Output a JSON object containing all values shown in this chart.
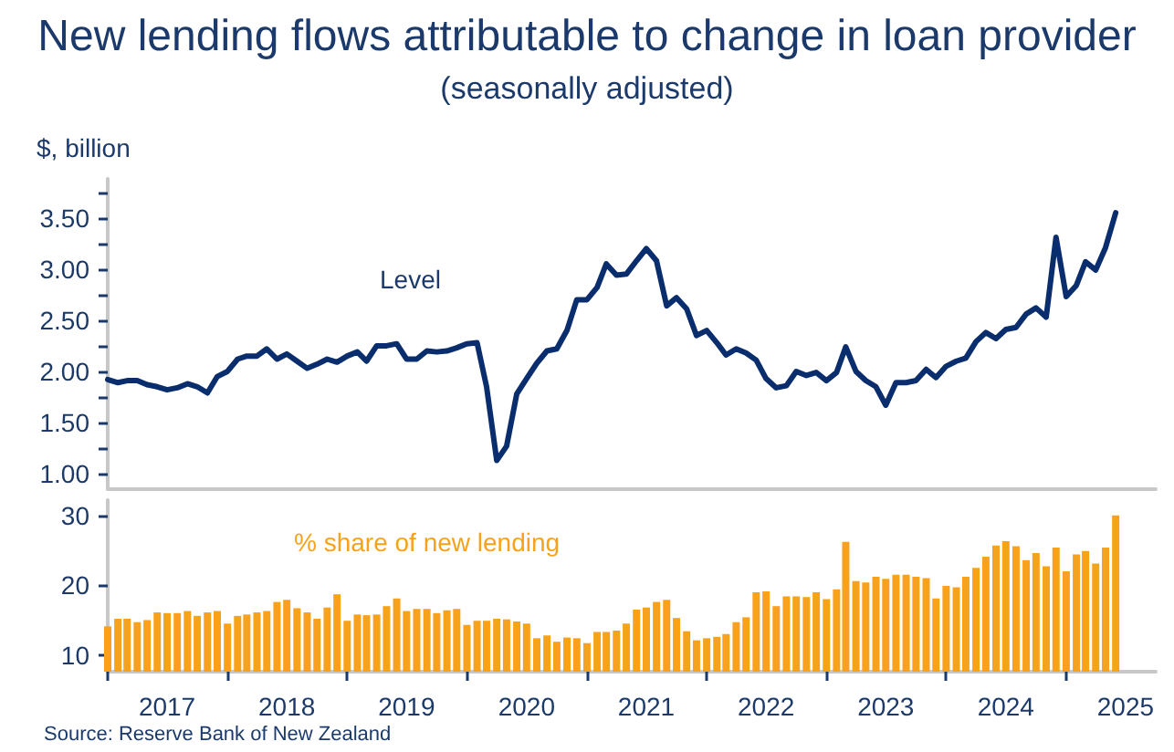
{
  "chart_data": [
    {
      "type": "line",
      "title": "New lending flows attributable to change in loan provider",
      "subtitle": "(seasonally adjusted)",
      "ylabel": "$, billion",
      "x": [
        "2017-01",
        "2017-02",
        "2017-03",
        "2017-04",
        "2017-05",
        "2017-06",
        "2017-07",
        "2017-08",
        "2017-09",
        "2017-10",
        "2017-11",
        "2017-12",
        "2018-01",
        "2018-02",
        "2018-03",
        "2018-04",
        "2018-05",
        "2018-06",
        "2018-07",
        "2018-08",
        "2018-09",
        "2018-10",
        "2018-11",
        "2018-12",
        "2019-01",
        "2019-02",
        "2019-03",
        "2019-04",
        "2019-05",
        "2019-06",
        "2019-07",
        "2019-08",
        "2019-09",
        "2019-10",
        "2019-11",
        "2019-12",
        "2020-01",
        "2020-02",
        "2020-03",
        "2020-04",
        "2020-05",
        "2020-06",
        "2020-07",
        "2020-08",
        "2020-09",
        "2020-10",
        "2020-11",
        "2020-12",
        "2021-01",
        "2021-02",
        "2021-03",
        "2021-04",
        "2021-05",
        "2021-06",
        "2021-07",
        "2021-08",
        "2021-09",
        "2021-10",
        "2021-11",
        "2021-12",
        "2022-01",
        "2022-02",
        "2022-03",
        "2022-04",
        "2022-05",
        "2022-06",
        "2022-07",
        "2022-08",
        "2022-09",
        "2022-10",
        "2022-11",
        "2022-12",
        "2023-01",
        "2023-02",
        "2023-03",
        "2023-04",
        "2023-05",
        "2023-06",
        "2023-07",
        "2023-08",
        "2023-09",
        "2023-10",
        "2023-11",
        "2023-12",
        "2024-01",
        "2024-02",
        "2024-03",
        "2024-04",
        "2024-05",
        "2024-06",
        "2024-07",
        "2024-08",
        "2024-09",
        "2024-10",
        "2024-11",
        "2024-12",
        "2025-01",
        "2025-02",
        "2025-03",
        "2025-04",
        "2025-05",
        "2025-06"
      ],
      "series": [
        {
          "name": "Level",
          "color": "#0a2d6e",
          "values": [
            1.92,
            1.89,
            1.91,
            1.91,
            1.87,
            1.85,
            1.82,
            1.84,
            1.88,
            1.85,
            1.79,
            1.95,
            2.0,
            2.12,
            2.15,
            2.15,
            2.22,
            2.12,
            2.17,
            2.1,
            2.03,
            2.07,
            2.12,
            2.09,
            2.15,
            2.19,
            2.1,
            2.25,
            2.25,
            2.27,
            2.12,
            2.12,
            2.2,
            2.19,
            2.2,
            2.23,
            2.27,
            2.28,
            1.85,
            1.13,
            1.27,
            1.78,
            1.93,
            2.08,
            2.2,
            2.22,
            2.4,
            2.7,
            2.7,
            2.82,
            3.05,
            2.94,
            2.95,
            3.08,
            3.2,
            3.08,
            2.64,
            2.72,
            2.61,
            2.35,
            2.4,
            2.28,
            2.16,
            2.22,
            2.18,
            2.11,
            1.93,
            1.84,
            1.86,
            2.0,
            1.96,
            1.99,
            1.91,
            1.99,
            2.24,
            2.0,
            1.91,
            1.85,
            1.67,
            1.89,
            1.89,
            1.91,
            2.02,
            1.94,
            2.05,
            2.1,
            2.13,
            2.29,
            2.38,
            2.32,
            2.41,
            2.43,
            2.56,
            2.62,
            2.53,
            3.31,
            2.73,
            2.84,
            3.07,
            2.99,
            3.21,
            3.55
          ]
        }
      ],
      "xlim": [
        "2017-01",
        "2025-10"
      ],
      "ylim": [
        0.85,
        3.88
      ],
      "yticks": [
        {
          "value": 1,
          "label": "1.00"
        },
        {
          "value": 1.25,
          "label": null
        },
        {
          "value": 1.5,
          "label": "1.50"
        },
        {
          "value": 1.75,
          "label": null
        },
        {
          "value": 2,
          "label": "2.00"
        },
        {
          "value": 2.25,
          "label": null
        },
        {
          "value": 2.5,
          "label": "2.50"
        },
        {
          "value": 2.75,
          "label": null
        },
        {
          "value": 3,
          "label": "3.00"
        },
        {
          "value": 3.25,
          "label": null
        },
        {
          "value": 3.5,
          "label": "3.50"
        },
        {
          "value": 3.75,
          "label": null
        }
      ],
      "tick_labels": "y",
      "grid": false,
      "legend": false,
      "marker": "none",
      "line_style": "solid"
    },
    {
      "type": "bar",
      "annotations": [
        "Source: Reserve Bank of New Zealand"
      ],
      "x": [
        "2017-01",
        "2017-02",
        "2017-03",
        "2017-04",
        "2017-05",
        "2017-06",
        "2017-07",
        "2017-08",
        "2017-09",
        "2017-10",
        "2017-11",
        "2017-12",
        "2018-01",
        "2018-02",
        "2018-03",
        "2018-04",
        "2018-05",
        "2018-06",
        "2018-07",
        "2018-08",
        "2018-09",
        "2018-10",
        "2018-11",
        "2018-12",
        "2019-01",
        "2019-02",
        "2019-03",
        "2019-04",
        "2019-05",
        "2019-06",
        "2019-07",
        "2019-08",
        "2019-09",
        "2019-10",
        "2019-11",
        "2019-12",
        "2020-01",
        "2020-02",
        "2020-03",
        "2020-04",
        "2020-05",
        "2020-06",
        "2020-07",
        "2020-08",
        "2020-09",
        "2020-10",
        "2020-11",
        "2020-12",
        "2021-01",
        "2021-02",
        "2021-03",
        "2021-04",
        "2021-05",
        "2021-06",
        "2021-07",
        "2021-08",
        "2021-09",
        "2021-10",
        "2021-11",
        "2021-12",
        "2022-01",
        "2022-02",
        "2022-03",
        "2022-04",
        "2022-05",
        "2022-06",
        "2022-07",
        "2022-08",
        "2022-09",
        "2022-10",
        "2022-11",
        "2022-12",
        "2023-01",
        "2023-02",
        "2023-03",
        "2023-04",
        "2023-05",
        "2023-06",
        "2023-07",
        "2023-08",
        "2023-09",
        "2023-10",
        "2023-11",
        "2023-12",
        "2024-01",
        "2024-02",
        "2024-03",
        "2024-04",
        "2024-05",
        "2024-06",
        "2024-07",
        "2024-08",
        "2024-09",
        "2024-10",
        "2024-11",
        "2024-12",
        "2025-01",
        "2025-02",
        "2025-03",
        "2025-04",
        "2025-05",
        "2025-06"
      ],
      "series": [
        {
          "name": "% share of new lending",
          "color": "#f8a21c",
          "values": [
            14.1,
            15.2,
            15.2,
            14.7,
            15.0,
            16.1,
            16.0,
            16.0,
            16.3,
            15.6,
            16.1,
            16.3,
            14.5,
            15.6,
            15.8,
            16.1,
            16.3,
            17.6,
            17.9,
            16.7,
            16.1,
            15.2,
            16.8,
            18.7,
            14.9,
            15.8,
            15.7,
            15.8,
            17.0,
            18.1,
            16.3,
            16.6,
            16.6,
            16.0,
            16.4,
            16.6,
            14.3,
            14.9,
            14.9,
            15.2,
            15.1,
            14.8,
            14.5,
            12.4,
            12.8,
            11.9,
            12.5,
            12.4,
            11.7,
            13.3,
            13.3,
            13.5,
            14.5,
            16.5,
            16.8,
            17.6,
            17.9,
            15.3,
            13.4,
            12.1,
            12.4,
            12.6,
            13.0,
            14.7,
            15.4,
            19.0,
            19.1,
            17.0,
            18.4,
            18.4,
            18.3,
            19.0,
            18.0,
            19.4,
            26.2,
            20.6,
            20.4,
            21.2,
            20.9,
            21.5,
            21.5,
            21.2,
            21.0,
            18.1,
            19.9,
            19.7,
            21.2,
            22.5,
            24.1,
            25.7,
            26.3,
            25.6,
            23.6,
            24.6,
            22.7,
            25.4,
            22.0,
            24.4,
            24.9,
            23.1,
            25.4,
            30.0
          ]
        }
      ],
      "xlim": [
        "2017-01",
        "2025-10"
      ],
      "ylim": [
        7.6,
        32.2
      ],
      "yticks": [
        10,
        20,
        30
      ],
      "xticks": [
        {
          "value": "2017-01",
          "label": null
        },
        {
          "value": "2017-07",
          "label": "2017"
        },
        {
          "value": "2018-01",
          "label": null
        },
        {
          "value": "2018-07",
          "label": "2018"
        },
        {
          "value": "2019-01",
          "label": null
        },
        {
          "value": "2019-07",
          "label": "2019"
        },
        {
          "value": "2020-01",
          "label": null
        },
        {
          "value": "2020-07",
          "label": "2020"
        },
        {
          "value": "2021-01",
          "label": null
        },
        {
          "value": "2021-07",
          "label": "2021"
        },
        {
          "value": "2022-01",
          "label": null
        },
        {
          "value": "2022-07",
          "label": "2022"
        },
        {
          "value": "2023-01",
          "label": null
        },
        {
          "value": "2023-07",
          "label": "2023"
        },
        {
          "value": "2024-01",
          "label": null
        },
        {
          "value": "2024-07",
          "label": "2024"
        },
        {
          "value": "2025-01",
          "label": null
        },
        {
          "value": "2025-07",
          "label": "2025"
        }
      ],
      "grid": false,
      "legend": false
    }
  ]
}
